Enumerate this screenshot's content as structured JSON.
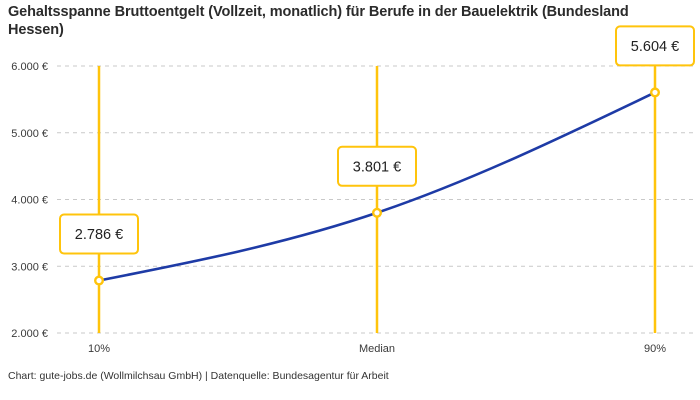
{
  "chart_data": {
    "type": "line",
    "title": "Gehaltsspanne Bruttoentgelt (Vollzeit, monatlich) für Berufe in der Bauelektrik (Bundesland Hessen)",
    "categories": [
      "10%",
      "Median",
      "90%"
    ],
    "x_percentiles": [
      10,
      50,
      90
    ],
    "values": [
      2786,
      3801,
      5604
    ],
    "point_labels": [
      "2.786 €",
      "3.801 €",
      "5.604 €"
    ],
    "ylim": [
      2000,
      6000
    ],
    "yticks": [
      2000,
      3000,
      4000,
      5000,
      6000
    ],
    "ytick_labels": [
      "2.000 €",
      "3.000 €",
      "4.000 €",
      "5.000 €",
      "6.000 €"
    ],
    "xlabel": "",
    "ylabel": "",
    "grid": "horizontal-dashed",
    "legend": "none",
    "colors": {
      "line": "#1e3ba6",
      "annotation": "#ffc40c",
      "grid": "#c9c9c9",
      "marker_fill": "#ffffff",
      "title_text": "#2b2b2b",
      "tick_text": "#3a3a3a"
    },
    "source": "Chart: gute-jobs.de (Wollmilchsau GmbH) | Datenquelle: Bundesagentur für Arbeit"
  }
}
